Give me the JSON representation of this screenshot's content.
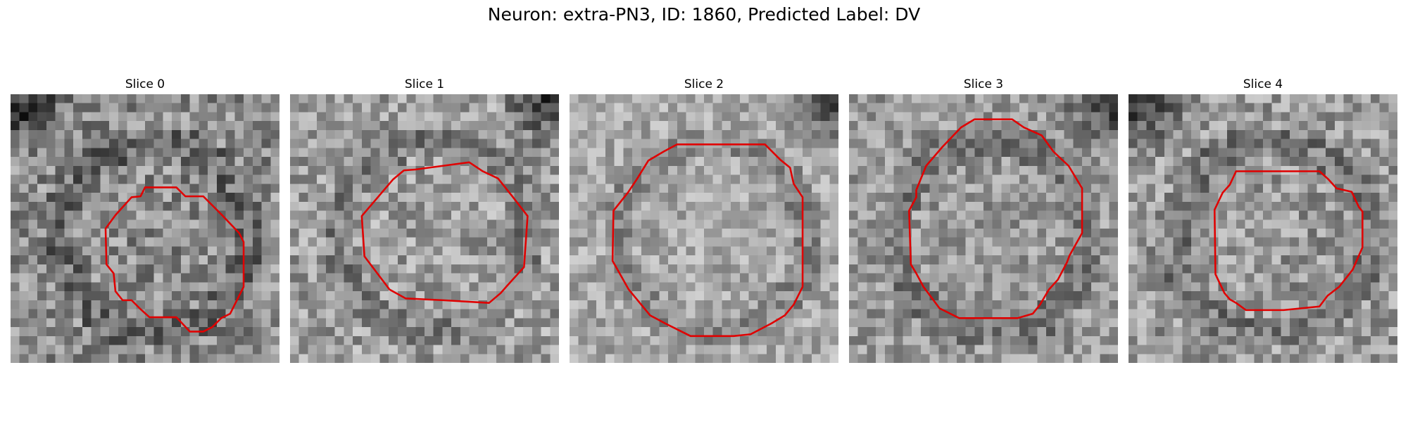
{
  "figure": {
    "title": "Neuron: extra-PN3, ID: 1860, Predicted Label: DV"
  },
  "panels": [
    {
      "title": "Slice 0",
      "mean_gray": 0.55,
      "contrast": 0.22,
      "dark_corner": "top-left"
    },
    {
      "title": "Slice 1",
      "mean_gray": 0.62,
      "contrast": 0.2,
      "dark_corner": "top-right"
    },
    {
      "title": "Slice 2",
      "mean_gray": 0.66,
      "contrast": 0.16,
      "dark_corner": "top-right"
    },
    {
      "title": "Slice 3",
      "mean_gray": 0.6,
      "contrast": 0.18,
      "dark_corner": "top-right"
    },
    {
      "title": "Slice 4",
      "mean_gray": 0.6,
      "contrast": 0.2,
      "dark_corner": "top-left"
    }
  ],
  "colors": {
    "contour": "#e00000",
    "background": "#ffffff"
  }
}
